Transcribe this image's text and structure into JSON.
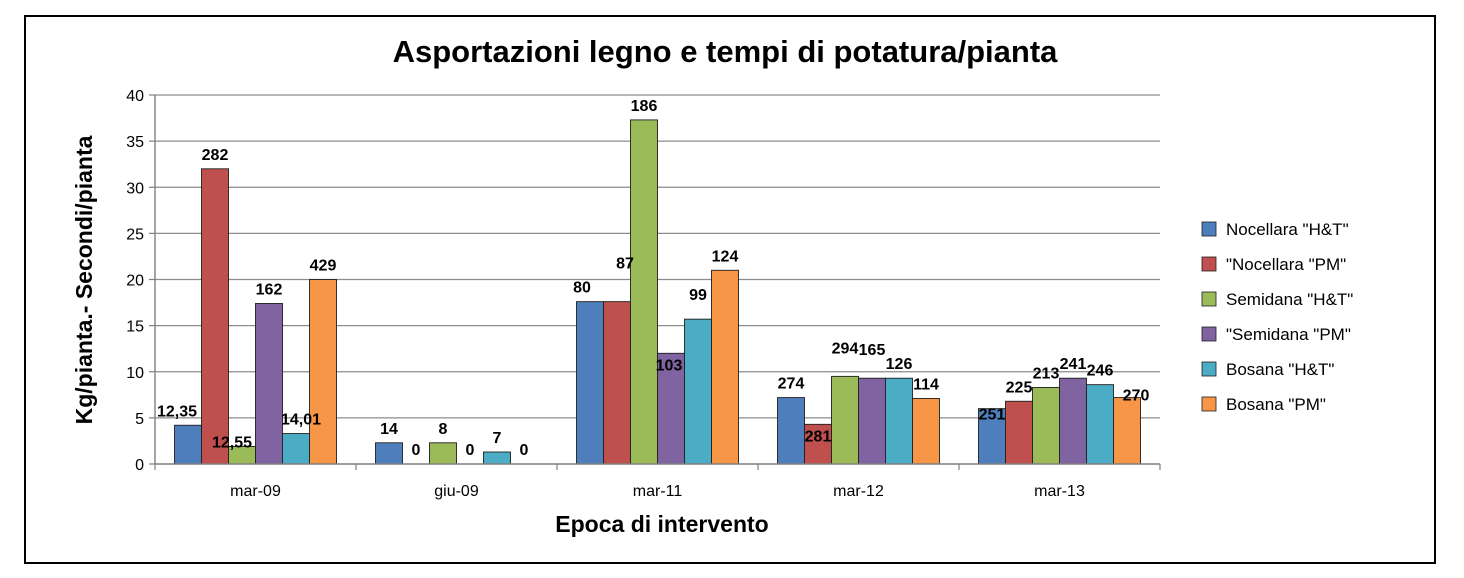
{
  "chart_data": {
    "type": "bar",
    "title": "Asportazioni legno e tempi di potatura/pianta",
    "xlabel": "Epoca di intervento",
    "ylabel": "Kg/pianta.- Secondi/pianta",
    "ylim": [
      0,
      40
    ],
    "yticks": [
      0,
      5,
      10,
      15,
      20,
      25,
      30,
      35,
      40
    ],
    "grid": true,
    "legend_position": "right",
    "categories": [
      "mar-09",
      "giu-09",
      "mar-11",
      "mar-12",
      "mar-13"
    ],
    "series": [
      {
        "name": "Nocellara \"H&T\"",
        "color": "#4F7EBD",
        "values": [
          4.2,
          2.3,
          17.6,
          7.2,
          6.0
        ],
        "labels": [
          "12,35",
          "14",
          "80",
          "274",
          "251"
        ]
      },
      {
        "name": "\"Nocellara \"PM\"",
        "color": "#C0504D",
        "values": [
          32.0,
          0,
          17.6,
          4.3,
          6.8
        ],
        "labels": [
          "282",
          "0",
          "87",
          "281",
          "225"
        ]
      },
      {
        "name": "Semidana \"H&T\"",
        "color": "#9BBB59",
        "values": [
          1.9,
          2.3,
          37.3,
          9.5,
          8.3
        ],
        "labels": [
          "12,55",
          "8",
          "186",
          "294",
          "213"
        ]
      },
      {
        "name": "\"Semidana \"PM\"",
        "color": "#8064A2",
        "values": [
          17.4,
          0,
          12.0,
          9.3,
          9.3
        ],
        "labels": [
          "162",
          "0",
          "103",
          "165",
          "241"
        ]
      },
      {
        "name": "Bosana \"H&T\"",
        "color": "#4BACC6",
        "values": [
          3.3,
          1.3,
          15.7,
          9.3,
          8.6
        ],
        "labels": [
          "14,01",
          "7",
          "99",
          "126",
          "246"
        ]
      },
      {
        "name": "Bosana \"PM\"",
        "color": "#F79646",
        "values": [
          20.0,
          0,
          21.0,
          7.1,
          7.2
        ],
        "labels": [
          "429",
          "0",
          "124",
          "114",
          "270"
        ]
      }
    ]
  }
}
